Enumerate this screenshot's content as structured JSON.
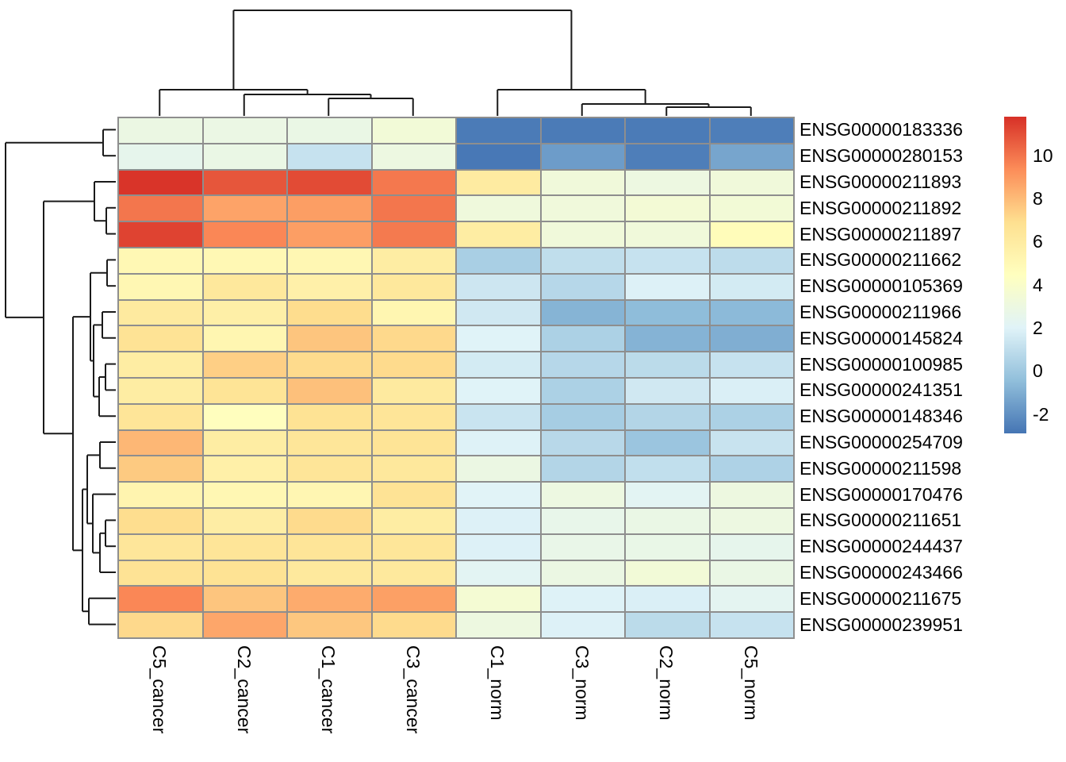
{
  "chart_data": {
    "type": "heatmap",
    "title": "",
    "rows": [
      "ENSG00000183336",
      "ENSG00000280153",
      "ENSG00000211893",
      "ENSG00000211892",
      "ENSG00000211897",
      "ENSG00000211662",
      "ENSG00000105369",
      "ENSG00000211966",
      "ENSG00000145824",
      "ENSG00000100985",
      "ENSG00000241351",
      "ENSG00000148346",
      "ENSG00000254709",
      "ENSG00000211598",
      "ENSG00000170476",
      "ENSG00000211651",
      "ENSG00000244437",
      "ENSG00000243466",
      "ENSG00000211675",
      "ENSG00000239951"
    ],
    "columns": [
      "C5_cancer",
      "C2_cancer",
      "C1_cancer",
      "C3_cancer",
      "C1_norm",
      "C3_norm",
      "C2_norm",
      "C5_norm"
    ],
    "values": [
      [
        2.9,
        2.85,
        2.8,
        3.4,
        -2.7,
        -2.7,
        -2.7,
        -2.6
      ],
      [
        2.5,
        2.8,
        1.2,
        3.0,
        -2.8,
        -1.6,
        -2.6,
        -1.3
      ],
      [
        11.7,
        10.8,
        11.1,
        9.9,
        6.0,
        3.3,
        3.0,
        3.3
      ],
      [
        9.95,
        8.7,
        8.85,
        9.95,
        3.2,
        3.25,
        3.5,
        3.45
      ],
      [
        11.3,
        9.5,
        8.85,
        9.85,
        5.9,
        3.3,
        3.3,
        4.7
      ],
      [
        5.0,
        5.0,
        5.1,
        5.9,
        0.3,
        1.0,
        1.2,
        0.9
      ],
      [
        5.1,
        6.3,
        5.6,
        6.3,
        1.4,
        0.7,
        1.9,
        1.6
      ],
      [
        6.1,
        5.7,
        7.0,
        5.2,
        1.5,
        -0.8,
        -0.5,
        -0.6
      ],
      [
        6.65,
        5.2,
        7.7,
        7.1,
        2.0,
        0.4,
        -0.85,
        -1.0
      ],
      [
        5.9,
        7.4,
        7.05,
        7.05,
        1.6,
        0.7,
        0.85,
        1.2
      ],
      [
        5.9,
        6.6,
        7.85,
        6.1,
        2.0,
        0.4,
        1.5,
        1.8
      ],
      [
        6.5,
        4.5,
        6.7,
        6.5,
        1.3,
        0.2,
        0.6,
        0.4
      ],
      [
        8.1,
        5.9,
        6.45,
        6.6,
        1.95,
        0.75,
        -0.15,
        1.25
      ],
      [
        7.55,
        5.65,
        6.5,
        6.3,
        2.9,
        0.6,
        1.05,
        0.45
      ],
      [
        5.3,
        5.1,
        5.15,
        6.65,
        2.05,
        3.0,
        2.2,
        3.05
      ],
      [
        6.95,
        5.85,
        7.05,
        5.9,
        1.9,
        2.6,
        2.8,
        3.0
      ],
      [
        6.4,
        6.5,
        6.5,
        6.45,
        1.9,
        2.7,
        2.75,
        2.5
      ],
      [
        6.65,
        6.7,
        6.2,
        6.2,
        2.2,
        2.9,
        3.4,
        2.8
      ],
      [
        9.5,
        7.7,
        8.45,
        8.8,
        3.6,
        1.95,
        1.8,
        2.3
      ],
      [
        7.1,
        8.6,
        7.65,
        7.05,
        3.05,
        1.9,
        0.85,
        1.2
      ]
    ],
    "vmin": -2.9,
    "vmax": 11.8,
    "palette": [
      "#4575b4",
      "#91bfdb",
      "#e0f3f8",
      "#ffffbf",
      "#fee090",
      "#fc8d59",
      "#d73027"
    ],
    "legend_ticks": [
      10,
      8,
      6,
      4,
      2,
      0,
      -2
    ],
    "legend_position": "right",
    "col_dendrogram": {
      "merges": [
        [
          "L2",
          "L3",
          124
        ],
        [
          "L1",
          "M0",
          119
        ],
        [
          "L0",
          "M1",
          113
        ],
        [
          "L6",
          "L7",
          135
        ],
        [
          "L5",
          "M3",
          131
        ],
        [
          "L4",
          "M4",
          113
        ],
        [
          "M2",
          "M5",
          13
        ]
      ]
    },
    "row_dendrogram": {
      "merges": [
        [
          "L0",
          "L1",
          130
        ],
        [
          "L3",
          "L4",
          134
        ],
        [
          "L2",
          "M1",
          119
        ],
        [
          "L5",
          "L6",
          135
        ],
        [
          "L7",
          "L8",
          129
        ],
        [
          "L9",
          "L10",
          133
        ],
        [
          "M5",
          "L11",
          125
        ],
        [
          "M4",
          "M6",
          118
        ],
        [
          "M3",
          "M7",
          114
        ],
        [
          "L12",
          "L13",
          126
        ],
        [
          "L15",
          "L16",
          133
        ],
        [
          "M10",
          "L17",
          126
        ],
        [
          "L14",
          "M11",
          117
        ],
        [
          "M9",
          "M12",
          110
        ],
        [
          "L18",
          "L19",
          112
        ],
        [
          "M13",
          "M14",
          104
        ],
        [
          "M8",
          "M15",
          92
        ],
        [
          "M2",
          "M16",
          55
        ],
        [
          "M0",
          "M17",
          7
        ]
      ]
    }
  },
  "colors": {
    "gridline": "#8e8e8e",
    "dendrogram_line": "#1a1a1a",
    "background": "#ffffff",
    "label_text": "#000000"
  }
}
